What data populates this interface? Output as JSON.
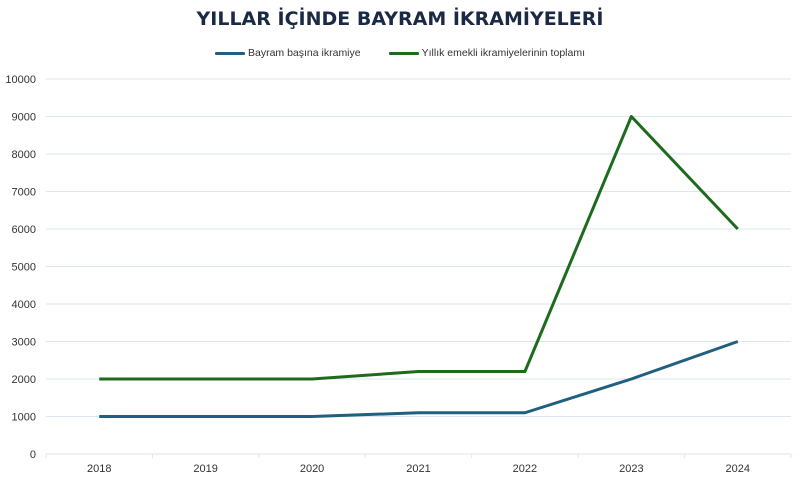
{
  "chart_data": {
    "type": "line",
    "title": "YILLAR İÇİNDE BAYRAM İKRAMİYELERİ",
    "xlabel": "",
    "ylabel": "",
    "categories": [
      "2018",
      "2019",
      "2020",
      "2021",
      "2022",
      "2023",
      "2024"
    ],
    "series": [
      {
        "name": "Bayram başına ikramiye",
        "color": "#1f5f7f",
        "values": [
          1000,
          1000,
          1000,
          1100,
          1100,
          2000,
          3000
        ]
      },
      {
        "name": "Yıllık emekli ikramiyelerinin toplamı",
        "color": "#1e6b1e",
        "values": [
          2000,
          2000,
          2000,
          2200,
          2200,
          9000,
          6000
        ]
      }
    ],
    "ylim": [
      0,
      10000
    ],
    "yticks": [
      0,
      1000,
      2000,
      3000,
      4000,
      5000,
      6000,
      7000,
      8000,
      9000,
      10000
    ],
    "grid": true,
    "legend_position": "top"
  }
}
